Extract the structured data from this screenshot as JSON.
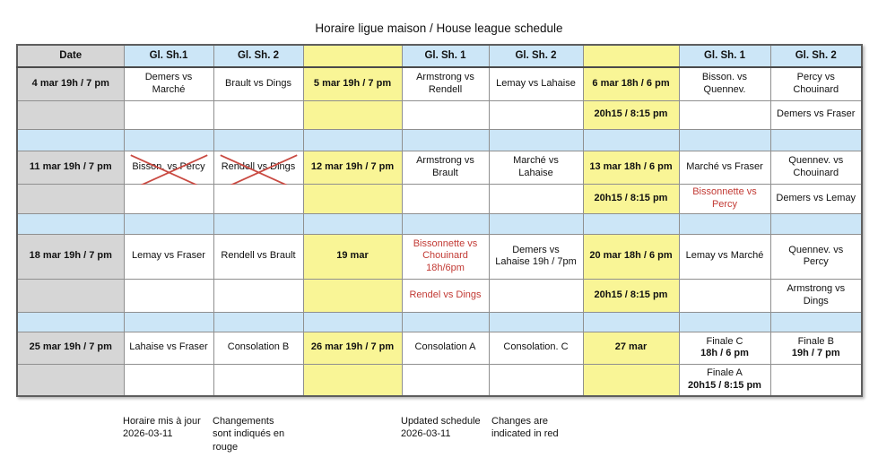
{
  "title": "Horaire ligue maison / House league schedule",
  "colors": {
    "header_blue": "#cce6f7",
    "date_gray": "#d6d6d6",
    "highlight_yellow": "#f9f596",
    "change_red": "#c23a34"
  },
  "table": {
    "header": [
      "Date",
      "Gl. Sh.1",
      "Gl. Sh. 2",
      "",
      "Gl. Sh. 1",
      "Gl. Sh. 2",
      "",
      "Gl. Sh. 1",
      "Gl. Sh. 2"
    ],
    "weeks": [
      {
        "rows": [
          [
            {
              "t": "4 mar 19h / 7 pm",
              "bold": true
            },
            {
              "t": "Demers vs\nMarché"
            },
            {
              "t": "Brault vs Dings"
            },
            {
              "t": "5 mar 19h / 7 pm",
              "bold": true
            },
            {
              "t": "Armstrong vs\nRendell"
            },
            {
              "t": "Lemay vs Lahaise"
            },
            {
              "t": "6 mar 18h / 6 pm",
              "bold": true
            },
            {
              "t": "Bisson. vs\nQuennev."
            },
            {
              "t": "Percy vs\nChouinard"
            }
          ],
          [
            null,
            null,
            null,
            null,
            null,
            null,
            {
              "t": "20h15 / 8:15 pm",
              "bold": true
            },
            null,
            {
              "t": "Demers vs Fraser"
            }
          ]
        ]
      },
      {
        "rows": [
          [
            {
              "t": "11 mar 19h / 7 pm",
              "bold": true
            },
            {
              "t": "Bisson. vs Percy",
              "cross": true
            },
            {
              "t": "Rendell vs Dings",
              "cross": true
            },
            {
              "t": "12 mar 19h / 7 pm",
              "bold": true
            },
            {
              "t": "Armstrong vs\nBrault"
            },
            {
              "t": "Marché vs\nLahaise"
            },
            {
              "t": "13 mar 18h / 6 pm",
              "bold": true
            },
            {
              "t": "Marché vs Fraser"
            },
            {
              "t": "Quennev. vs\nChouinard"
            }
          ],
          [
            null,
            null,
            null,
            null,
            null,
            null,
            {
              "t": "20h15 / 8:15 pm",
              "bold": true
            },
            {
              "t": "Bissonnette vs\nPercy",
              "red": true
            },
            {
              "t": "Demers vs Lemay"
            }
          ]
        ]
      },
      {
        "rows": [
          [
            {
              "t": "18 mar 19h / 7 pm",
              "bold": true
            },
            {
              "t": "Lemay vs Fraser"
            },
            {
              "t": "Rendell vs Brault"
            },
            {
              "t": "19 mar",
              "bold": true
            },
            {
              "t": "Bissonnette vs\nChouinard\n18h/6pm",
              "red": true
            },
            {
              "t": "Demers vs\nLahaise 19h / 7pm"
            },
            {
              "t": "20 mar 18h / 6 pm",
              "bold": true
            },
            {
              "t": "Lemay vs Marché"
            },
            {
              "t": "Quennev. vs\nPercy"
            }
          ],
          [
            null,
            null,
            null,
            null,
            {
              "t": "Rendel vs Dings",
              "red": true
            },
            null,
            {
              "t": "20h15 / 8:15 pm",
              "bold": true
            },
            null,
            {
              "t": "Armstrong vs\nDings"
            }
          ]
        ]
      },
      {
        "rows": [
          [
            {
              "t": "25 mar  19h / 7 pm",
              "bold": true
            },
            {
              "t": "Lahaise vs Fraser"
            },
            {
              "t": "Consolation B"
            },
            {
              "t": "26 mar 19h / 7 pm",
              "bold": true
            },
            {
              "t": "Consolation A"
            },
            {
              "t": "Consolation. C"
            },
            {
              "t": "27 mar",
              "bold": true
            },
            {
              "t": "Finale C",
              "b2": "18h / 6 pm"
            },
            {
              "t": "Finale B",
              "b2": "19h / 7 pm"
            }
          ],
          [
            null,
            null,
            null,
            null,
            null,
            null,
            null,
            {
              "t": "Finale A",
              "b2": "20h15 / 8:15 pm"
            },
            null
          ]
        ]
      }
    ]
  },
  "footer": {
    "notes": [
      "Horaire mis à jour\n2026-03-11",
      "Changements\nsont indiqués en\nrouge",
      "Updated schedule\n2026-03-11",
      "Changes are\nindicated in red"
    ]
  }
}
